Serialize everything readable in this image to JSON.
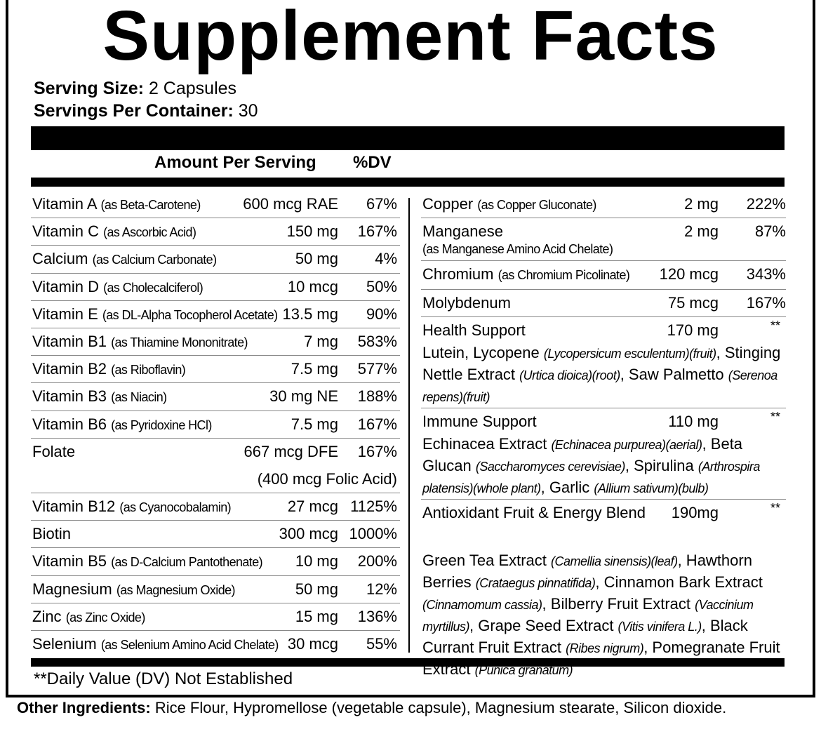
{
  "header": {
    "title": "Supplement Facts",
    "serving_size_label": "Serving Size:",
    "serving_size": "2 Capsules",
    "servings_label": "Servings Per Container:",
    "servings": "30"
  },
  "columns": {
    "amount": "Amount Per Serving",
    "dv": "%DV"
  },
  "left_rows": [
    {
      "name": "Vitamin A",
      "source": "(as Beta-Carotene)",
      "amount": "600 mcg RAE",
      "dv": "67%"
    },
    {
      "name": "Vitamin C",
      "source": "(as Ascorbic Acid)",
      "amount": "150 mg",
      "dv": "167%"
    },
    {
      "name": "Calcium",
      "source": "(as Calcium Carbonate)",
      "amount": "50 mg",
      "dv": "4%"
    },
    {
      "name": "Vitamin D",
      "source": "(as Cholecalciferol)",
      "amount": "10 mcg",
      "dv": "50%"
    },
    {
      "name": "Vitamin E",
      "source": "(as DL-Alpha Tocopherol Acetate)",
      "amount": "13.5 mg",
      "dv": "90%"
    },
    {
      "name": "Vitamin B1",
      "source": "(as Thiamine Mononitrate)",
      "amount": "7 mg",
      "dv": "583%"
    },
    {
      "name": "Vitamin B2",
      "source": "(as Riboflavin)",
      "amount": "7.5 mg",
      "dv": "577%"
    },
    {
      "name": "Vitamin B3",
      "source": "(as Niacin)",
      "amount": "30 mg NE",
      "dv": "188%"
    },
    {
      "name": "Vitamin B6",
      "source": "(as Pyridoxine HCl)",
      "amount": "7.5 mg",
      "dv": "167%"
    },
    {
      "name": "Folate",
      "amount": "667 mcg DFE",
      "dv": "167%",
      "note": "(400 mcg Folic Acid)"
    },
    {
      "name": "Vitamin B12",
      "source": "(as Cyanocobalamin)",
      "amount": "27 mcg",
      "dv": "1125%"
    },
    {
      "name": "Biotin",
      "amount": "300 mcg",
      "dv": "1000%"
    },
    {
      "name": "Vitamin B5",
      "source": "(as D-Calcium Pantothenate)",
      "amount": "10 mg",
      "dv": "200%"
    },
    {
      "name": "Magnesium",
      "source": "(as Magnesium Oxide)",
      "amount": "50 mg",
      "dv": "12%"
    },
    {
      "name": "Zinc",
      "source": "(as Zinc Oxide)",
      "amount": "15 mg",
      "dv": "136%"
    },
    {
      "name": "Selenium",
      "source": "(as Selenium Amino Acid Chelate)",
      "amount": "30 mcg",
      "dv": "55%"
    }
  ],
  "right_rows": [
    {
      "name": "Copper",
      "source": "(as Copper Gluconate)",
      "amount": "2 mg",
      "dv": "222%"
    },
    {
      "name": "Manganese",
      "source_below": "(as Manganese Amino Acid Chelate)",
      "amount": "2 mg",
      "dv": "87%"
    },
    {
      "name": "Chromium",
      "source": "(as Chromium Picolinate)",
      "amount": "120 mcg",
      "dv": "343%"
    },
    {
      "name": "Molybdenum",
      "amount": "75 mcg",
      "dv": "167%"
    },
    {
      "name": "Health Support",
      "amount": "170 mg",
      "dv": "**",
      "description": [
        {
          "text": "Lutein, Lycopene "
        },
        {
          "text": "(Lycopersicum esculentum)(fruit)",
          "italic": true
        },
        {
          "text": ", Stinging Nettle Extract "
        },
        {
          "text": "(Urtica dioica)(root)",
          "italic": true
        },
        {
          "text": ", Saw Palmetto "
        },
        {
          "text": "(Serenoa repens)(fruit)",
          "italic": true
        }
      ]
    },
    {
      "name": "Immune Support",
      "amount": "110 mg",
      "dv": "**",
      "description": [
        {
          "text": "Echinacea Extract "
        },
        {
          "text": "(Echinacea purpurea)(aerial)",
          "italic": true
        },
        {
          "text": ", Beta Glucan "
        },
        {
          "text": "(Saccharomyces cerevisiae)",
          "italic": true
        },
        {
          "text": ", Spirulina "
        },
        {
          "text": "(Arthrospira platensis)(whole plant)",
          "italic": true
        },
        {
          "text": ", Garlic "
        },
        {
          "text": "(Allium sativum)(bulb)",
          "italic": true
        }
      ]
    },
    {
      "name": "Antioxidant Fruit & Energy Blend",
      "amount": "190mg",
      "dv": "**",
      "description": [
        {
          "text": "Green Tea Extract "
        },
        {
          "text": "(Camellia sinensis)(leaf)",
          "italic": true
        },
        {
          "text": ", Hawthorn Berries "
        },
        {
          "text": "(Crataegus pinnatifida)",
          "italic": true
        },
        {
          "text": ", Cinnamon Bark Extract "
        },
        {
          "text": "(Cinnamomum cassia)",
          "italic": true
        },
        {
          "text": ", Bilberry Fruit Extract "
        },
        {
          "text": "(Vaccinium myrtillus)",
          "italic": true
        },
        {
          "text": ", Grape Seed Extract "
        },
        {
          "text": "(Vitis vinifera L.)",
          "italic": true
        },
        {
          "text": ", Black Currant Fruit Extract "
        },
        {
          "text": "(Ribes nigrum)",
          "italic": true
        },
        {
          "text": ", Pomegranate Fruit Extract "
        },
        {
          "text": "(Punica granatum)",
          "italic": true
        }
      ]
    }
  ],
  "footnote": "**Daily Value (DV) Not Established",
  "other_ingredients": {
    "label": "Other Ingredients:",
    "text": "Rice Flour, Hypromellose (vegetable capsule), Magnesium stearate, Silicon dioxide."
  }
}
